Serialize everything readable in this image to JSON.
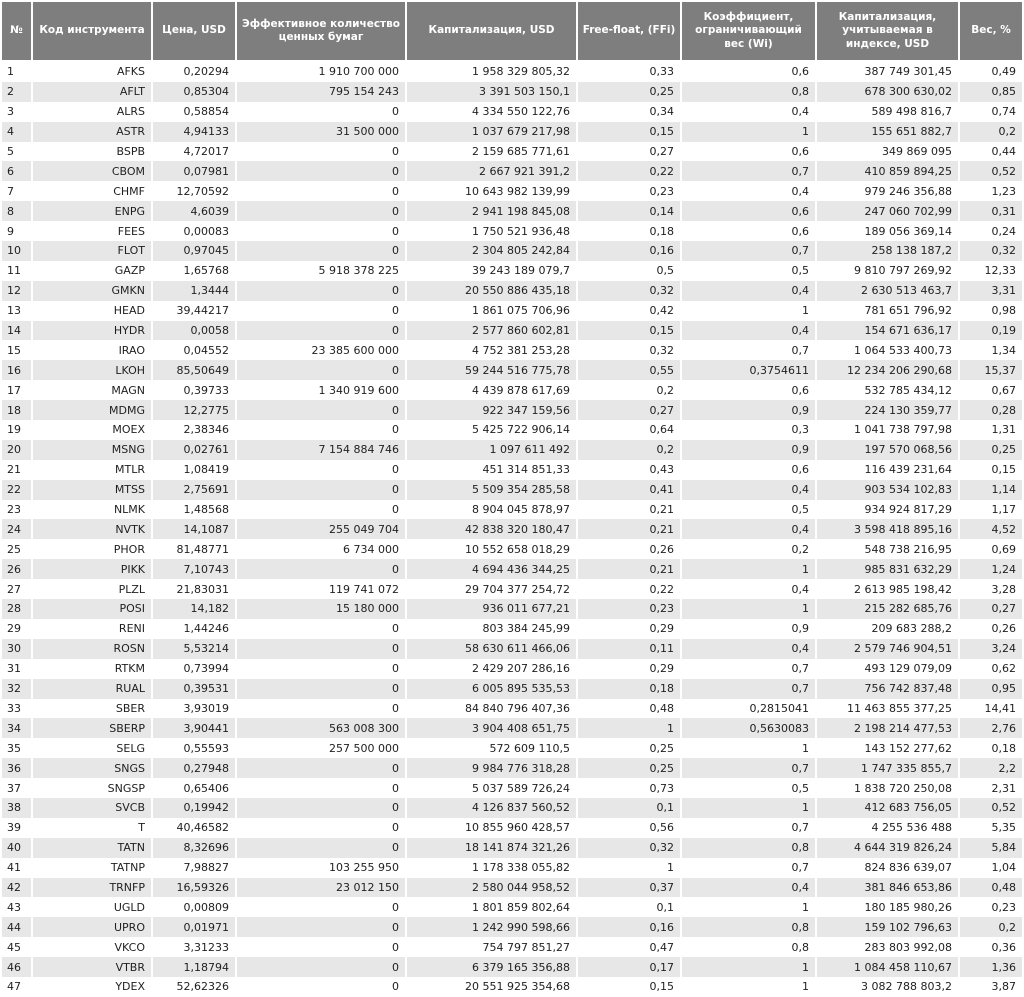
{
  "colors": {
    "header_bg": "#7e7e7e",
    "header_text": "#ffffff",
    "row_alt_bg": "#e7e7e7",
    "row_bg": "#ffffff",
    "text": "#1f1f1f",
    "grid": "#ffffff"
  },
  "table": {
    "columns": [
      {
        "key": "num",
        "label": "№"
      },
      {
        "key": "code",
        "label": "Код инструмента"
      },
      {
        "key": "price",
        "label": "Цена, USD"
      },
      {
        "key": "effective_qty",
        "label": "Эффективное количество ценных бумаг"
      },
      {
        "key": "cap_usd",
        "label": "Капитализация, USD"
      },
      {
        "key": "free_float",
        "label": "Free-float, (FFi)"
      },
      {
        "key": "wi",
        "label": "Коэффициент, ограничивающий вес (Wi)"
      },
      {
        "key": "cap_index_usd",
        "label": "Капитализация, учитываемая в индексе, USD"
      },
      {
        "key": "weight_pct",
        "label": "Вес, %"
      }
    ],
    "rows": [
      [
        "1",
        "AFKS",
        "0,20294",
        "1 910 700 000",
        "1 958 329 805,32",
        "0,33",
        "0,6",
        "387 749 301,45",
        "0,49"
      ],
      [
        "2",
        "AFLT",
        "0,85304",
        "795 154 243",
        "3 391 503 150,1",
        "0,25",
        "0,8",
        "678 300 630,02",
        "0,85"
      ],
      [
        "3",
        "ALRS",
        "0,58854",
        "0",
        "4 334 550 122,76",
        "0,34",
        "0,4",
        "589 498 816,7",
        "0,74"
      ],
      [
        "4",
        "ASTR",
        "4,94133",
        "31 500 000",
        "1 037 679 217,98",
        "0,15",
        "1",
        "155 651 882,7",
        "0,2"
      ],
      [
        "5",
        "BSPB",
        "4,72017",
        "0",
        "2 159 685 771,61",
        "0,27",
        "0,6",
        "349 869 095",
        "0,44"
      ],
      [
        "6",
        "CBOM",
        "0,07981",
        "0",
        "2 667 921 391,2",
        "0,22",
        "0,7",
        "410 859 894,25",
        "0,52"
      ],
      [
        "7",
        "CHMF",
        "12,70592",
        "0",
        "10 643 982 139,99",
        "0,23",
        "0,4",
        "979 246 356,88",
        "1,23"
      ],
      [
        "8",
        "ENPG",
        "4,6039",
        "0",
        "2 941 198 845,08",
        "0,14",
        "0,6",
        "247 060 702,99",
        "0,31"
      ],
      [
        "9",
        "FEES",
        "0,00083",
        "0",
        "1 750 521 936,48",
        "0,18",
        "0,6",
        "189 056 369,14",
        "0,24"
      ],
      [
        "10",
        "FLOT",
        "0,97045",
        "0",
        "2 304 805 242,84",
        "0,16",
        "0,7",
        "258 138 187,2",
        "0,32"
      ],
      [
        "11",
        "GAZP",
        "1,65768",
        "5 918 378 225",
        "39 243 189 079,7",
        "0,5",
        "0,5",
        "9 810 797 269,92",
        "12,33"
      ],
      [
        "12",
        "GMKN",
        "1,3444",
        "0",
        "20 550 886 435,18",
        "0,32",
        "0,4",
        "2 630 513 463,7",
        "3,31"
      ],
      [
        "13",
        "HEAD",
        "39,44217",
        "0",
        "1 861 075 706,96",
        "0,42",
        "1",
        "781 651 796,92",
        "0,98"
      ],
      [
        "14",
        "HYDR",
        "0,0058",
        "0",
        "2 577 860 602,81",
        "0,15",
        "0,4",
        "154 671 636,17",
        "0,19"
      ],
      [
        "15",
        "IRAO",
        "0,04552",
        "23 385 600 000",
        "4 752 381 253,28",
        "0,32",
        "0,7",
        "1 064 533 400,73",
        "1,34"
      ],
      [
        "16",
        "LKOH",
        "85,50649",
        "0",
        "59 244 516 775,78",
        "0,55",
        "0,3754611",
        "12 234 206 290,68",
        "15,37"
      ],
      [
        "17",
        "MAGN",
        "0,39733",
        "1 340 919 600",
        "4 439 878 617,69",
        "0,2",
        "0,6",
        "532 785 434,12",
        "0,67"
      ],
      [
        "18",
        "MDMG",
        "12,2775",
        "0",
        "922 347 159,56",
        "0,27",
        "0,9",
        "224 130 359,77",
        "0,28"
      ],
      [
        "19",
        "MOEX",
        "2,38346",
        "0",
        "5 425 722 906,14",
        "0,64",
        "0,3",
        "1 041 738 797,98",
        "1,31"
      ],
      [
        "20",
        "MSNG",
        "0,02761",
        "7 154 884 746",
        "1 097 611 492",
        "0,2",
        "0,9",
        "197 570 068,56",
        "0,25"
      ],
      [
        "21",
        "MTLR",
        "1,08419",
        "0",
        "451 314 851,33",
        "0,43",
        "0,6",
        "116 439 231,64",
        "0,15"
      ],
      [
        "22",
        "MTSS",
        "2,75691",
        "0",
        "5 509 354 285,58",
        "0,41",
        "0,4",
        "903 534 102,83",
        "1,14"
      ],
      [
        "23",
        "NLMK",
        "1,48568",
        "0",
        "8 904 045 878,97",
        "0,21",
        "0,5",
        "934 924 817,29",
        "1,17"
      ],
      [
        "24",
        "NVTK",
        "14,1087",
        "255 049 704",
        "42 838 320 180,47",
        "0,21",
        "0,4",
        "3 598 418 895,16",
        "4,52"
      ],
      [
        "25",
        "PHOR",
        "81,48771",
        "6 734 000",
        "10 552 658 018,29",
        "0,26",
        "0,2",
        "548 738 216,95",
        "0,69"
      ],
      [
        "26",
        "PIKK",
        "7,10743",
        "0",
        "4 694 436 344,25",
        "0,21",
        "1",
        "985 831 632,29",
        "1,24"
      ],
      [
        "27",
        "PLZL",
        "21,83031",
        "119 741 072",
        "29 704 377 254,72",
        "0,22",
        "0,4",
        "2 613 985 198,42",
        "3,28"
      ],
      [
        "28",
        "POSI",
        "14,182",
        "15 180 000",
        "936 011 677,21",
        "0,23",
        "1",
        "215 282 685,76",
        "0,27"
      ],
      [
        "29",
        "RENI",
        "1,44246",
        "0",
        "803 384 245,99",
        "0,29",
        "0,9",
        "209 683 288,2",
        "0,26"
      ],
      [
        "30",
        "ROSN",
        "5,53214",
        "0",
        "58 630 611 466,06",
        "0,11",
        "0,4",
        "2 579 746 904,51",
        "3,24"
      ],
      [
        "31",
        "RTKM",
        "0,73994",
        "0",
        "2 429 207 286,16",
        "0,29",
        "0,7",
        "493 129 079,09",
        "0,62"
      ],
      [
        "32",
        "RUAL",
        "0,39531",
        "0",
        "6 005 895 535,53",
        "0,18",
        "0,7",
        "756 742 837,48",
        "0,95"
      ],
      [
        "33",
        "SBER",
        "3,93019",
        "0",
        "84 840 796 407,36",
        "0,48",
        "0,2815041",
        "11 463 855 377,25",
        "14,41"
      ],
      [
        "34",
        "SBERP",
        "3,90441",
        "563 008 300",
        "3 904 408 651,75",
        "1",
        "0,5630083",
        "2 198 214 477,53",
        "2,76"
      ],
      [
        "35",
        "SELG",
        "0,55593",
        "257 500 000",
        "572 609 110,5",
        "0,25",
        "1",
        "143 152 277,62",
        "0,18"
      ],
      [
        "36",
        "SNGS",
        "0,27948",
        "0",
        "9 984 776 318,28",
        "0,25",
        "0,7",
        "1 747 335 855,7",
        "2,2"
      ],
      [
        "37",
        "SNGSP",
        "0,65406",
        "0",
        "5 037 589 726,24",
        "0,73",
        "0,5",
        "1 838 720 250,08",
        "2,31"
      ],
      [
        "38",
        "SVCB",
        "0,19942",
        "0",
        "4 126 837 560,52",
        "0,1",
        "1",
        "412 683 756,05",
        "0,52"
      ],
      [
        "39",
        "T",
        "40,46582",
        "0",
        "10 855 960 428,57",
        "0,56",
        "0,7",
        "4 255 536 488",
        "5,35"
      ],
      [
        "40",
        "TATN",
        "8,32696",
        "0",
        "18 141 874 321,26",
        "0,32",
        "0,8",
        "4 644 319 826,24",
        "5,84"
      ],
      [
        "41",
        "TATNP",
        "7,98827",
        "103 255 950",
        "1 178 338 055,82",
        "1",
        "0,7",
        "824 836 639,07",
        "1,04"
      ],
      [
        "42",
        "TRNFP",
        "16,59326",
        "23 012 150",
        "2 580 044 958,52",
        "0,37",
        "0,4",
        "381 846 653,86",
        "0,48"
      ],
      [
        "43",
        "UGLD",
        "0,00809",
        "0",
        "1 801 859 802,64",
        "0,1",
        "1",
        "180 185 980,26",
        "0,23"
      ],
      [
        "44",
        "UPRO",
        "0,01971",
        "0",
        "1 242 990 598,66",
        "0,16",
        "0,8",
        "159 102 796,63",
        "0,2"
      ],
      [
        "45",
        "VKCO",
        "3,31233",
        "0",
        "754 797 851,27",
        "0,47",
        "0,8",
        "283 803 992,08",
        "0,36"
      ],
      [
        "46",
        "VTBR",
        "1,18794",
        "0",
        "6 379 165 356,88",
        "0,17",
        "1",
        "1 084 458 110,67",
        "1,36"
      ],
      [
        "47",
        "YDEX",
        "52,62326",
        "0",
        "20 551 925 354,68",
        "0,15",
        "1",
        "3 082 788 803,2",
        "3,87"
      ]
    ]
  }
}
